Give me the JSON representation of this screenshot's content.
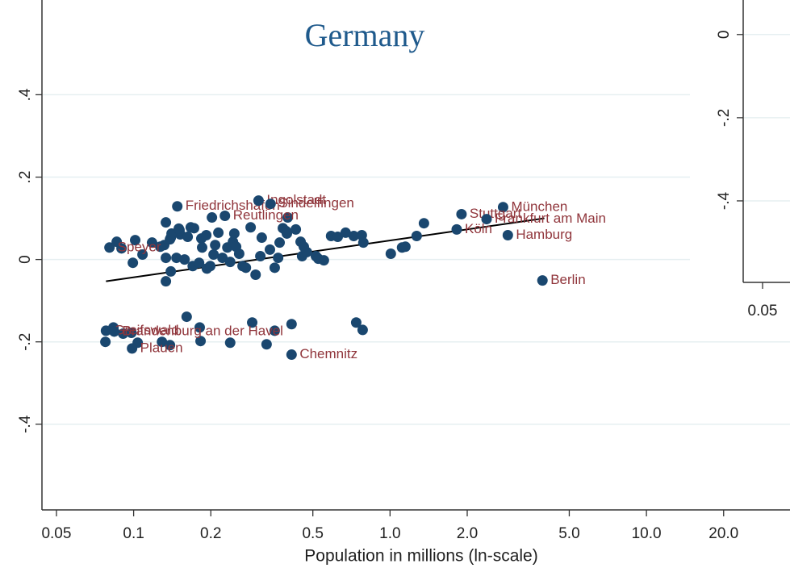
{
  "chart_data": [
    {
      "type": "scatter",
      "title": "Germany",
      "x_label": "Population in millions (ln-scale)",
      "log_x": true,
      "grid": true,
      "point_color": "#1a476f",
      "label_color": "#90353b",
      "line_color": "#000000",
      "xlim": [
        0.0439,
        36.3
      ],
      "ylim": [
        -0.608,
        0.63
      ],
      "xticks": [
        0.05,
        0.1,
        0.2,
        0.5,
        {
          "value": 1,
          "label": "1.0"
        },
        {
          "value": 2,
          "label": "2.0"
        },
        {
          "value": 5,
          "label": "5.0"
        },
        {
          "value": 10,
          "label": "10.0"
        },
        {
          "value": 20,
          "label": "20.0"
        }
      ],
      "yticks": [
        {
          "value": 0.4,
          "label": ".4"
        },
        {
          "value": 0.2,
          "label": ".2"
        },
        0,
        {
          "value": -0.2,
          "label": "-.2"
        },
        {
          "value": -0.4,
          "label": "-.4"
        }
      ],
      "points": {
        "x": [
          0.118,
          0.1014,
          0.1316,
          0.1396,
          0.152,
          0.1625,
          0.172,
          0.1837,
          0.185,
          0.192,
          0.202,
          0.208,
          0.205,
          0.214,
          0.222,
          0.232,
          0.238,
          0.244,
          0.247,
          0.251,
          0.258,
          0.266,
          0.274,
          0.286,
          0.299,
          0.312,
          0.316,
          0.34,
          0.355,
          0.366,
          0.371,
          0.382,
          0.393,
          0.399,
          0.429,
          0.448,
          0.454,
          0.474,
          0.514,
          0.525,
          0.552,
          0.589,
          0.625,
          0.671,
          0.722,
          0.776,
          0.787,
          1.007,
          1.114,
          1.148,
          1.27,
          1.356,
          0.0993,
          0.1083,
          0.1336,
          0.1396,
          0.1406,
          0.151,
          0.17,
          0.158,
          0.18,
          0.193,
          0.0897,
          0.0859,
          0.1336,
          0.1386,
          0.127,
          0.1469,
          0.199,
          0.396,
          0.461,
          0.1336,
          0.167,
          0.15,
          0.0834,
          0.091,
          0.098,
          0.161,
          0.181,
          0.29,
          0.355,
          0.413,
          0.738,
          0.782,
          0.0776,
          0.1037,
          0.129,
          0.1386,
          0.1824,
          0.238,
          0.33
        ],
        "y": [
          0.041,
          0.047,
          0.035,
          0.053,
          0.061,
          0.055,
          0.076,
          0.051,
          0.029,
          0.059,
          0.102,
          0.035,
          0.012,
          0.065,
          0.004,
          0.029,
          -0.006,
          0.043,
          0.063,
          0.031,
          0.014,
          -0.016,
          -0.02,
          0.078,
          -0.037,
          0.008,
          0.053,
          0.024,
          -0.02,
          0.004,
          0.041,
          0.076,
          0.069,
          0.102,
          0.073,
          0.043,
          0.008,
          0.018,
          0.008,
          0.002,
          -0.002,
          0.057,
          0.055,
          0.065,
          0.057,
          0.059,
          0.041,
          0.014,
          0.029,
          0.031,
          0.057,
          0.088,
          -0.008,
          0.012,
          0.004,
          -0.029,
          0.063,
          0.071,
          -0.016,
          0.0,
          -0.008,
          -0.022,
          0.027,
          0.043,
          -0.053,
          0.049,
          0.031,
          0.004,
          -0.016,
          0.063,
          0.031,
          0.09,
          0.078,
          0.075,
          -0.165,
          -0.18,
          -0.178,
          -0.139,
          -0.165,
          -0.153,
          -0.173,
          -0.157,
          -0.153,
          -0.171,
          -0.2,
          -0.202,
          -0.2,
          -0.208,
          -0.198,
          -0.202,
          -0.206
        ]
      },
      "labeled": {
        "labels": [
          "Speyer",
          "Friedrichshafen",
          "Ingolstadt",
          "Sindelfingen",
          "Reutlingen",
          "München",
          "Stuttgart",
          "Frankfurt am Main",
          "Köln",
          "Hamburg",
          "Berlin",
          "Chemnitz",
          "Greifswald",
          "Brandenburg an der Havel",
          "Plauen"
        ],
        "x": [
          0.0805,
          0.148,
          0.307,
          0.342,
          0.227,
          2.76,
          1.9,
          2.38,
          1.82,
          2.88,
          3.93,
          0.413,
          0.078,
          0.084,
          0.0986
        ],
        "y": [
          0.029,
          0.129,
          0.143,
          0.135,
          0.106,
          0.127,
          0.11,
          0.098,
          0.073,
          0.059,
          -0.051,
          -0.231,
          -0.173,
          -0.175,
          -0.216
        ]
      },
      "fit": {
        "x": [
          0.078,
          4.0
        ],
        "y": [
          -0.053,
          0.1
        ]
      }
    },
    {
      "type": "scatter",
      "log_x": true,
      "grid": true,
      "xlim": [
        0.042,
        0.064
      ],
      "ylim": [
        -0.596,
        0.083
      ],
      "xticks": [
        0.05
      ],
      "yticks": [
        0,
        {
          "value": -0.2,
          "label": "-.2"
        },
        {
          "value": -0.4,
          "label": "-.4"
        }
      ]
    }
  ]
}
